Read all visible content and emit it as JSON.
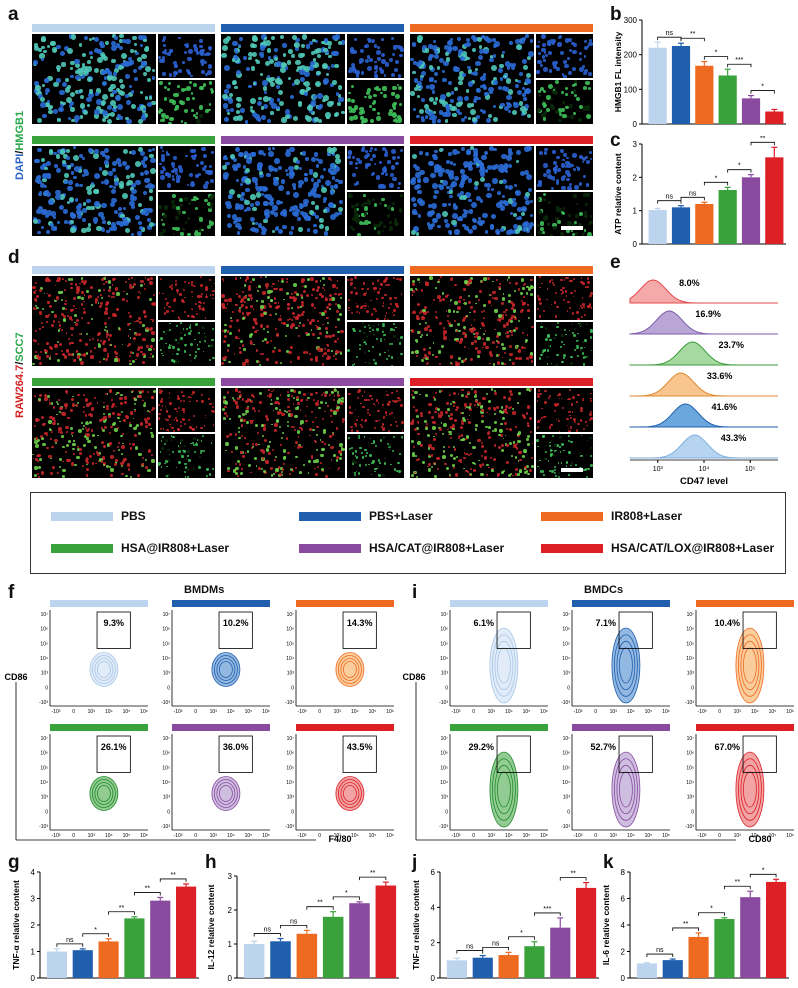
{
  "colors": {
    "PBS": "#bcd4ee",
    "PBS+Laser": "#1f5fae",
    "IR808+Laser": "#ee6a21",
    "HSA@IR808+Laser": "#3aa23a",
    "HSA/CAT@IR808+Laser": "#8a4aa0",
    "HSA/CAT/LOX@IR808+Laser": "#dd1f26"
  },
  "panels": {
    "a": "a",
    "b": "b",
    "c": "c",
    "d": "d",
    "e": "e",
    "f": "f",
    "g": "g",
    "h": "h",
    "i": "i",
    "j": "j",
    "k": "k"
  },
  "micro_labels": {
    "a_stain_1": "DAPI",
    "a_stain_sep": "/",
    "a_stain_2": "HMGB1",
    "d_stain_1": "RAW264.7",
    "d_stain_sep": "/",
    "d_stain_2": "SCC7"
  },
  "legend": [
    {
      "label": "PBS",
      "color": "#bcd4ee"
    },
    {
      "label": "PBS+Laser",
      "color": "#1f5fae"
    },
    {
      "label": "IR808+Laser",
      "color": "#ee6a21"
    },
    {
      "label": "HSA@IR808+Laser",
      "color": "#3aa23a"
    },
    {
      "label": "HSA/CAT@IR808+Laser",
      "color": "#8a4aa0"
    },
    {
      "label": "HSA/CAT/LOX@IR808+Laser",
      "color": "#dd1f26"
    }
  ],
  "histogram": {
    "panel": "e",
    "xlabel": "CD47 level",
    "ticks": [
      "10³",
      "10⁴",
      "10⁵"
    ],
    "percentages": [
      "8.0%",
      "16.9%",
      "23.7%",
      "33.6%",
      "41.6%",
      "43.3%"
    ],
    "peak_positions_log10": [
      2.9,
      3.25,
      3.75,
      3.5,
      3.6,
      3.8
    ]
  },
  "flow_bmdm": {
    "title": "BMDMs",
    "xlabel": "F4/80",
    "ylabel": "CD86",
    "gates": [
      "9.3%",
      "10.2%",
      "14.3%",
      "26.1%",
      "36.0%",
      "43.5%"
    ],
    "yticks": [
      "10⁷",
      "10⁶",
      "10⁵",
      "10⁴",
      "10³",
      "0",
      "-10³"
    ],
    "xticks": [
      "-10³",
      "0",
      "10³",
      "10⁴",
      "10⁵",
      "10⁶"
    ]
  },
  "flow_bmdc": {
    "title": "BMDCs",
    "xlabel": "CD80",
    "ylabel": "CD86",
    "gates": [
      "6.1%",
      "7.1%",
      "10.4%",
      "29.2%",
      "52.7%",
      "67.0%"
    ],
    "yticks": [
      "10⁷",
      "10⁶",
      "10⁵",
      "10⁴",
      "10³",
      "0",
      "-10³"
    ],
    "xticks": [
      "-10³",
      "0",
      "10³",
      "10⁴",
      "10⁵",
      "10⁶"
    ]
  },
  "chart_data": [
    {
      "panel": "b",
      "type": "bar",
      "ylabel": "HMGB1 FL intensity",
      "ylim": [
        0,
        300
      ],
      "yticks": [
        0,
        100,
        200,
        300
      ],
      "values": [
        220,
        225,
        168,
        140,
        74,
        36
      ],
      "errors": [
        16,
        8,
        12,
        18,
        8,
        6
      ],
      "sig": [
        {
          "a": 0,
          "b": 1,
          "t": "ns"
        },
        {
          "a": 1,
          "b": 2,
          "t": "**"
        },
        {
          "a": 2,
          "b": 3,
          "t": "*"
        },
        {
          "a": 3,
          "b": 4,
          "t": "***"
        },
        {
          "a": 4,
          "b": 5,
          "t": "*"
        }
      ]
    },
    {
      "panel": "c",
      "type": "bar",
      "ylabel": "ATP relative content",
      "ylim": [
        0,
        3
      ],
      "yticks": [
        0,
        1,
        2,
        3
      ],
      "values": [
        1.02,
        1.1,
        1.2,
        1.62,
        2.0,
        2.6
      ],
      "errors": [
        0.05,
        0.05,
        0.05,
        0.08,
        0.08,
        0.3
      ],
      "sig": [
        {
          "a": 0,
          "b": 1,
          "t": "ns"
        },
        {
          "a": 1,
          "b": 2,
          "t": "ns"
        },
        {
          "a": 2,
          "b": 3,
          "t": "*"
        },
        {
          "a": 3,
          "b": 4,
          "t": "*"
        },
        {
          "a": 4,
          "b": 5,
          "t": "**"
        }
      ]
    },
    {
      "panel": "g",
      "type": "bar",
      "ylabel": "TNF-α relative content",
      "ylim": [
        0,
        4
      ],
      "yticks": [
        0,
        1,
        2,
        3,
        4
      ],
      "values": [
        1.0,
        1.05,
        1.38,
        2.25,
        2.92,
        3.45
      ],
      "errors": [
        0.1,
        0.05,
        0.1,
        0.06,
        0.12,
        0.1
      ],
      "sig": [
        {
          "a": 0,
          "b": 1,
          "t": "ns"
        },
        {
          "a": 1,
          "b": 2,
          "t": "*"
        },
        {
          "a": 2,
          "b": 3,
          "t": "**"
        },
        {
          "a": 3,
          "b": 4,
          "t": "**"
        },
        {
          "a": 4,
          "b": 5,
          "t": "**"
        }
      ]
    },
    {
      "panel": "h",
      "type": "bar",
      "ylabel": "IL-12 relative content",
      "ylim": [
        0,
        3
      ],
      "yticks": [
        0,
        1,
        2,
        3
      ],
      "values": [
        1.0,
        1.08,
        1.3,
        1.8,
        2.2,
        2.72
      ],
      "errors": [
        0.08,
        0.08,
        0.1,
        0.15,
        0.04,
        0.1
      ],
      "sig": [
        {
          "a": 0,
          "b": 1,
          "t": "ns"
        },
        {
          "a": 1,
          "b": 2,
          "t": "ns"
        },
        {
          "a": 2,
          "b": 3,
          "t": "**"
        },
        {
          "a": 3,
          "b": 4,
          "t": "*"
        },
        {
          "a": 4,
          "b": 5,
          "t": "**"
        }
      ]
    },
    {
      "panel": "j",
      "type": "bar",
      "ylabel": "TNF-α relative content",
      "ylim": [
        0,
        6
      ],
      "yticks": [
        0,
        2,
        4,
        6
      ],
      "values": [
        1.0,
        1.15,
        1.3,
        1.8,
        2.85,
        5.1
      ],
      "errors": [
        0.12,
        0.12,
        0.15,
        0.25,
        0.55,
        0.3
      ],
      "sig": [
        {
          "a": 0,
          "b": 1,
          "t": "ns"
        },
        {
          "a": 1,
          "b": 2,
          "t": "ns"
        },
        {
          "a": 2,
          "b": 3,
          "t": "*"
        },
        {
          "a": 3,
          "b": 4,
          "t": "***"
        },
        {
          "a": 4,
          "b": 5,
          "t": "**"
        }
      ]
    },
    {
      "panel": "k",
      "type": "bar",
      "ylabel": "IL-6 relative content",
      "ylim": [
        0,
        8
      ],
      "yticks": [
        0,
        2,
        4,
        6,
        8
      ],
      "values": [
        1.1,
        1.35,
        3.1,
        4.45,
        6.1,
        7.25
      ],
      "errors": [
        0.05,
        0.08,
        0.3,
        0.1,
        0.45,
        0.2
      ],
      "sig": [
        {
          "a": 0,
          "b": 1,
          "t": "ns"
        },
        {
          "a": 1,
          "b": 2,
          "t": "**"
        },
        {
          "a": 2,
          "b": 3,
          "t": "*"
        },
        {
          "a": 3,
          "b": 4,
          "t": "**"
        },
        {
          "a": 4,
          "b": 5,
          "t": "*"
        }
      ]
    }
  ]
}
